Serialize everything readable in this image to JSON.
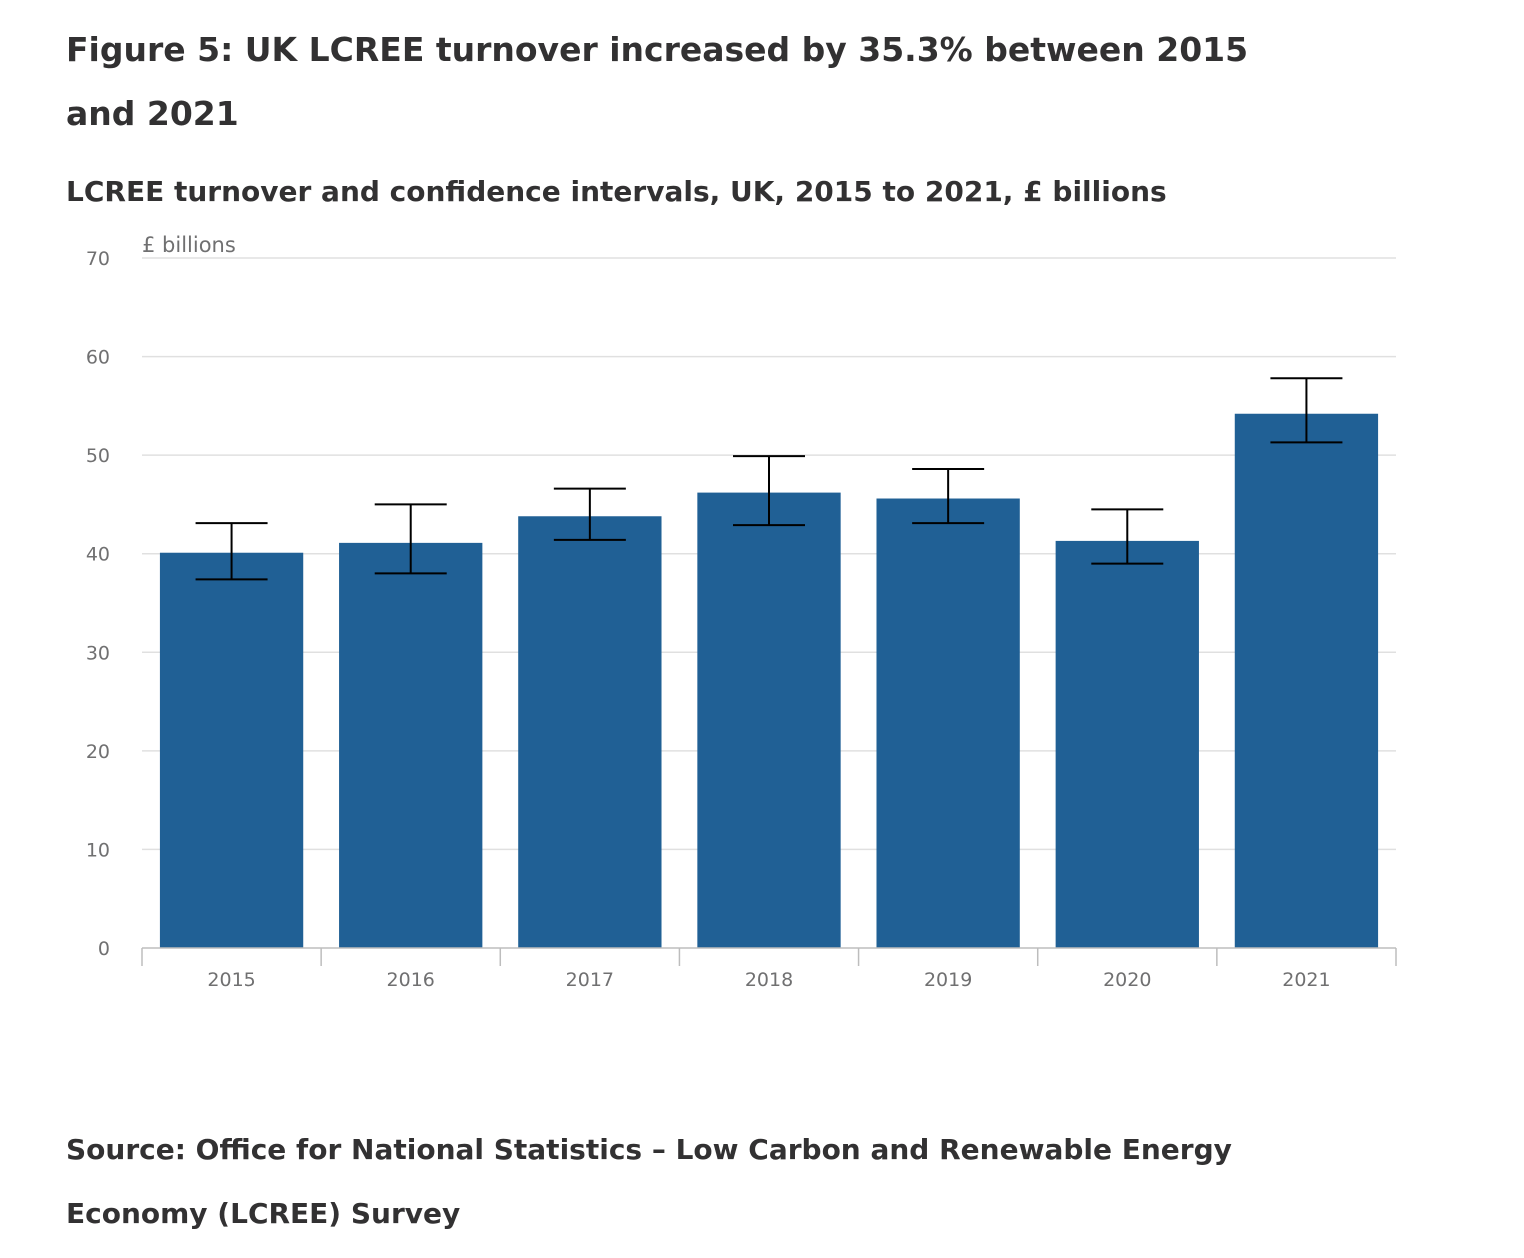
{
  "figure": {
    "title": "Figure 5: UK LCREE turnover increased by 35.3% between 2015 and 2021",
    "subtitle": "LCREE turnover and confidence intervals, UK, 2015 to 2021, £ billions",
    "source": "Source: Office for National Statistics – Low Carbon and Renewable Energy Economy (LCREE) Survey"
  },
  "colors": {
    "bar": "#206095",
    "gridline": "#e0e0e0",
    "axis": "#bdbdbd",
    "error_bar": "#000000"
  },
  "chart_data": {
    "type": "bar",
    "title": "LCREE turnover and confidence intervals, UK, 2015 to 2021, £ billions",
    "ylabel": "£ billions",
    "xlabel": "",
    "categories": [
      "2015",
      "2016",
      "2017",
      "2018",
      "2019",
      "2020",
      "2021"
    ],
    "series": [
      {
        "values": [
          40.1,
          41.1,
          43.8,
          46.2,
          45.6,
          41.3,
          54.2
        ],
        "ci_lower": [
          37.4,
          38.0,
          41.4,
          42.9,
          43.1,
          39.0,
          51.3
        ],
        "ci_upper": [
          43.1,
          45.0,
          46.6,
          49.9,
          48.6,
          44.5,
          57.8
        ]
      }
    ],
    "ylim": [
      0,
      70
    ],
    "yticks": [
      0,
      10,
      20,
      30,
      40,
      50,
      60,
      70
    ],
    "grid": true,
    "legend": "none"
  }
}
